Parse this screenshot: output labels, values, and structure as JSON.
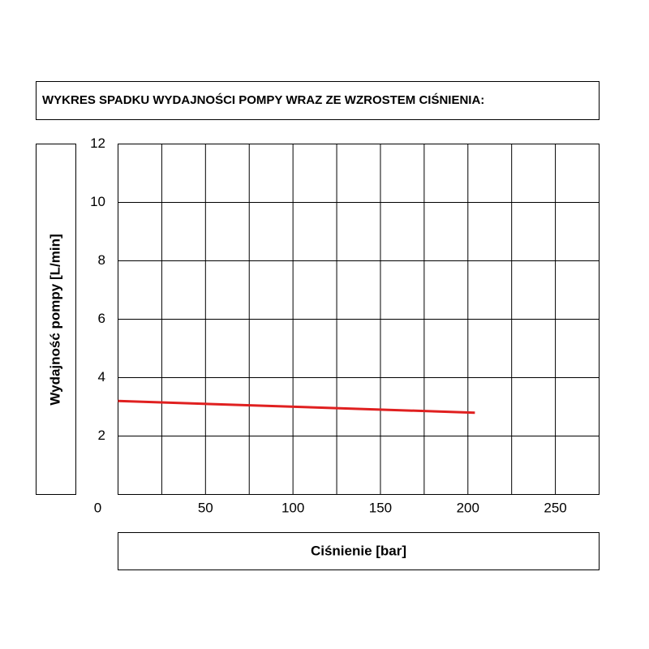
{
  "chart_data": {
    "type": "line",
    "title": "WYKRES SPADKU WYDAJNOŚCI POMPY WRAZ ZE WZROSTEM CIŚNIENIA:",
    "x_label": "Ciśnienie [bar]",
    "y_label": "Wydajność pompy [L/min]",
    "x": [
      0,
      204
    ],
    "series": [
      {
        "name": "Wydajność",
        "color": "#e02020",
        "values": [
          3.2,
          2.8
        ]
      }
    ],
    "xlim": [
      0,
      275
    ],
    "ylim": [
      0,
      12
    ],
    "xticks": [
      0,
      50,
      100,
      150,
      200,
      250
    ],
    "yticks": [
      2,
      4,
      6,
      8,
      10,
      12
    ],
    "xgrid": [
      25,
      50,
      75,
      100,
      125,
      150,
      175,
      200,
      225,
      250,
      275
    ],
    "grid": true
  }
}
